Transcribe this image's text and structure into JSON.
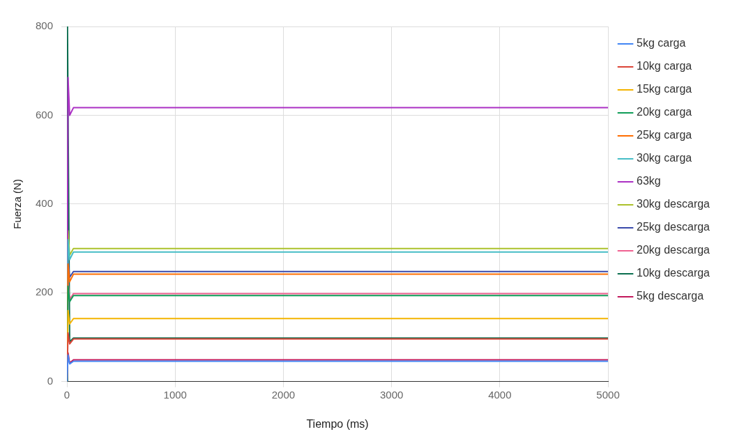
{
  "chart_data": {
    "type": "line",
    "xlabel": "Tiempo (ms)",
    "ylabel": "Fuerza (N)",
    "xlim": [
      0,
      5000
    ],
    "xticks": [
      0,
      1000,
      2000,
      3000,
      4000,
      5000
    ],
    "ylim": [
      0,
      800
    ],
    "yticks": [
      0,
      200,
      400,
      600,
      800
    ],
    "grid": true,
    "legend": "right",
    "marker": "none",
    "line_style": "solid",
    "series": [
      {
        "name": "5kg carga",
        "color": "#4285f4",
        "x": [
          0,
          10,
          25,
          60,
          5000
        ],
        "values": [
          0,
          60,
          40,
          46,
          46
        ]
      },
      {
        "name": "10kg carga",
        "color": "#db4437",
        "x": [
          0,
          10,
          25,
          60,
          5000
        ],
        "values": [
          0,
          110,
          85,
          96,
          96
        ]
      },
      {
        "name": "15kg carga",
        "color": "#f4b400",
        "x": [
          0,
          10,
          25,
          60,
          5000
        ],
        "values": [
          0,
          160,
          130,
          142,
          142
        ]
      },
      {
        "name": "20kg carga",
        "color": "#0f9d58",
        "x": [
          0,
          10,
          25,
          60,
          5000
        ],
        "values": [
          0,
          215,
          180,
          194,
          194
        ]
      },
      {
        "name": "25kg carga",
        "color": "#ff6d01",
        "x": [
          0,
          10,
          25,
          60,
          5000
        ],
        "values": [
          0,
          265,
          225,
          242,
          242
        ]
      },
      {
        "name": "30kg carga",
        "color": "#46bdc6",
        "x": [
          0,
          10,
          25,
          60,
          5000
        ],
        "values": [
          0,
          320,
          275,
          292,
          292
        ]
      },
      {
        "name": "63kg",
        "color": "#ab30c4",
        "x": [
          0,
          10,
          25,
          60,
          5000
        ],
        "values": [
          0,
          685,
          600,
          617,
          617
        ]
      },
      {
        "name": "30kg descarga",
        "color": "#abc12a",
        "x": [
          0,
          10,
          25,
          60,
          5000
        ],
        "values": [
          0,
          340,
          285,
          300,
          300
        ]
      },
      {
        "name": "25kg descarga",
        "color": "#3949ab",
        "x": [
          0,
          10,
          25,
          60,
          5000
        ],
        "values": [
          0,
          280,
          235,
          248,
          248
        ]
      },
      {
        "name": "20kg descarga",
        "color": "#f06292",
        "x": [
          0,
          10,
          25,
          60,
          5000
        ],
        "values": [
          0,
          225,
          185,
          198,
          198
        ]
      },
      {
        "name": "10kg descarga",
        "color": "#0b6e4f",
        "x": [
          0,
          5,
          25,
          60,
          5000
        ],
        "values": [
          0,
          800,
          90,
          98,
          98
        ]
      },
      {
        "name": "5kg descarga",
        "color": "#c2185b",
        "x": [
          0,
          10,
          25,
          60,
          5000
        ],
        "values": [
          0,
          65,
          42,
          49,
          49
        ]
      }
    ]
  }
}
